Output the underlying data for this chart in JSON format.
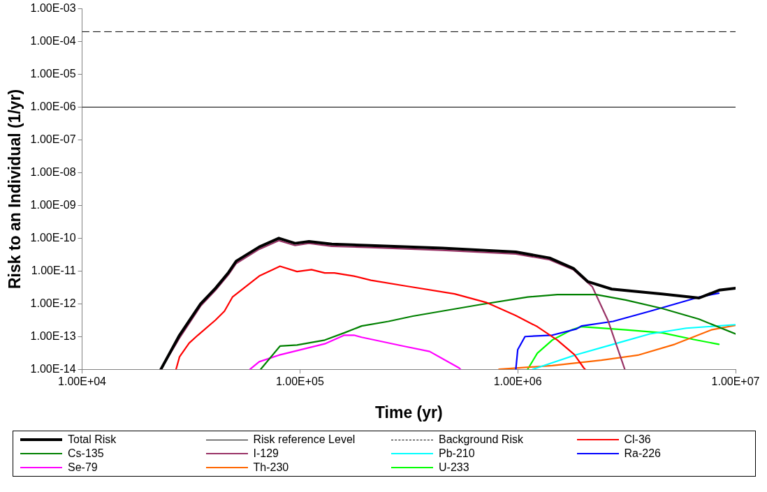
{
  "chart_data": {
    "type": "line",
    "xlabel": "Time (yr)",
    "ylabel": "Risk to an Individual (1/yr)",
    "log": "xy",
    "grid": false,
    "legend": "bottom",
    "marker": "none",
    "xlim": [
      10000,
      10000000
    ],
    "xticks": [
      {
        "value": 10000,
        "label": "1.00E+04"
      },
      {
        "value": 100000,
        "label": "1.00E+05"
      },
      {
        "value": 1000000,
        "label": "1.00E+06"
      },
      {
        "value": 10000000,
        "label": "1.00E+07"
      }
    ],
    "ylim": [
      1e-14,
      0.001
    ],
    "yticks": [
      {
        "value": 1e-14,
        "label": "1.00E-14"
      },
      {
        "value": 1e-13,
        "label": "1.00E-13"
      },
      {
        "value": 1e-12,
        "label": "1.00E-12"
      },
      {
        "value": 1e-11,
        "label": "1.00E-11"
      },
      {
        "value": 1e-10,
        "label": "1.00E-10"
      },
      {
        "value": 1e-09,
        "label": "1.00E-09"
      },
      {
        "value": 1e-08,
        "label": "1.00E-08"
      },
      {
        "value": 1e-07,
        "label": "1.00E-07"
      },
      {
        "value": 1e-06,
        "label": "1.00E-06"
      },
      {
        "value": 1e-05,
        "label": "1.00E-05"
      },
      {
        "value": 0.0001,
        "label": "1.00E-04"
      },
      {
        "value": 0.001,
        "label": "1.00E-03"
      }
    ],
    "series": [
      {
        "name": "Total Risk",
        "color": "#000000",
        "x": [
          23000,
          28000,
          35000,
          41000,
          47000,
          51000,
          65000,
          80000,
          95000,
          110000,
          140000,
          210000,
          450000,
          980000,
          1400000,
          1800000,
          2100000,
          2700000,
          4600000,
          6800000,
          8400000,
          10000000
        ],
        "values": [
          1e-14,
          1.1e-13,
          1e-12,
          3e-12,
          9e-12,
          2e-11,
          5.4e-11,
          1e-10,
          7e-11,
          8e-11,
          6.6e-11,
          6e-11,
          5e-11,
          3.8e-11,
          2.5e-11,
          1.2e-11,
          4.7e-12,
          2.8e-12,
          2e-12,
          1.5e-12,
          2.6e-12,
          3e-12
        ]
      },
      {
        "name": "Risk reference Level",
        "color": "#000000",
        "x": [
          10000,
          10000000
        ],
        "values": [
          1e-06,
          1e-06
        ]
      },
      {
        "name": "Background Risk",
        "color": "#000000",
        "line_style": "dashed",
        "x": [
          10000,
          10000000
        ],
        "values": [
          0.0002,
          0.0002
        ]
      },
      {
        "name": "Cl-36",
        "color": "#ff0000",
        "x": [
          27000,
          28000,
          31000,
          34000,
          41000,
          45000,
          49000,
          65000,
          81000,
          97000,
          113000,
          130000,
          144000,
          177000,
          212000,
          305000,
          513000,
          716000,
          977000,
          1230000,
          1520000,
          1820000,
          2010000,
          2040000
        ],
        "values": [
          1e-14,
          2.4e-14,
          6.3e-14,
          1.1e-13,
          3.2e-13,
          5.9e-13,
          1.6e-12,
          7e-12,
          1.4e-11,
          9.6e-12,
          1.1e-11,
          8.7e-12,
          8.7e-12,
          7e-12,
          5.2e-12,
          3.5e-12,
          2e-12,
          1.1e-12,
          4.4e-13,
          2e-13,
          7.8e-14,
          2.8e-14,
          1.1e-14,
          1e-14
        ]
      },
      {
        "name": "Cs-135",
        "color": "#008000",
        "x": [
          66000,
          81000,
          97000,
          130000,
          160000,
          192000,
          255000,
          330000,
          664000,
          1110000,
          1520000,
          2290000,
          3130000,
          4600000,
          6790000,
          10000000
        ],
        "values": [
          1e-14,
          5.1e-14,
          5.5e-14,
          7.8e-14,
          1.3e-13,
          2.1e-13,
          2.9e-13,
          4.2e-13,
          9.3e-13,
          1.6e-12,
          1.9e-12,
          1.9e-12,
          1.3e-12,
          7.2e-13,
          3.4e-13,
          1.2e-13
        ]
      },
      {
        "name": "I-129",
        "color": "#993366",
        "x": [
          23000,
          28000,
          35000,
          41000,
          47000,
          51000,
          65000,
          80000,
          95000,
          110000,
          140000,
          210000,
          450000,
          980000,
          1400000,
          1800000,
          2200000,
          2600000,
          3100000
        ],
        "values": [
          1e-14,
          9e-14,
          8.5e-13,
          2.6e-12,
          7.7e-12,
          1.7e-11,
          4.6e-11,
          8.5e-11,
          6e-11,
          7e-11,
          5.7e-11,
          5.2e-11,
          4.3e-11,
          3.3e-11,
          2.2e-11,
          1.1e-11,
          3.3e-12,
          3e-13,
          1e-14
        ]
      },
      {
        "name": "Pb-210",
        "color": "#00ffff",
        "x": [
          1170000,
          1860000,
          2740000,
          4040000,
          5940000,
          10000000
        ],
        "values": [
          1e-14,
          2.8e-14,
          5.8e-14,
          1.2e-13,
          1.8e-13,
          2.3e-13
        ]
      },
      {
        "name": "Ra-226",
        "color": "#0000ff",
        "x": [
          980000,
          1000000,
          1080000,
          1440000,
          1860000,
          1960000,
          2740000,
          4040000,
          5260000,
          6790000,
          8380000
        ],
        "values": [
          1e-14,
          4e-14,
          1e-13,
          1.1e-13,
          1.7e-13,
          2.1e-13,
          2.9e-13,
          5.9e-13,
          9.8e-13,
          1.6e-12,
          2.1e-12
        ]
      },
      {
        "name": "Se-79",
        "color": "#ff00ff",
        "x": [
          59000,
          65000,
          80000,
          130000,
          160000,
          177000,
          192000,
          299000,
          394000,
          538000,
          546000
        ],
        "values": [
          1e-14,
          1.7e-14,
          2.7e-14,
          6e-14,
          1.1e-13,
          1.1e-13,
          9.5e-14,
          5.1e-14,
          3.5e-14,
          1.1e-14,
          1e-14
        ]
      },
      {
        "name": "Th-230",
        "color": "#ff6600",
        "x": [
          820000,
          1440000,
          2420000,
          3560000,
          5260000,
          7740000,
          10000000
        ],
        "values": [
          1e-14,
          1.3e-14,
          1.9e-14,
          2.7e-14,
          5.8e-14,
          1.6e-13,
          2.2e-13
        ]
      },
      {
        "name": "U-233",
        "color": "#00ff00",
        "x": [
          1110000,
          1230000,
          1440000,
          1770000,
          1960000,
          3130000,
          4600000,
          6430000,
          8380000
        ],
        "values": [
          1e-14,
          3.1e-14,
          7.8e-14,
          1.6e-13,
          2e-13,
          1.6e-13,
          1.3e-13,
          8.1e-14,
          5.8e-14
        ]
      }
    ]
  }
}
